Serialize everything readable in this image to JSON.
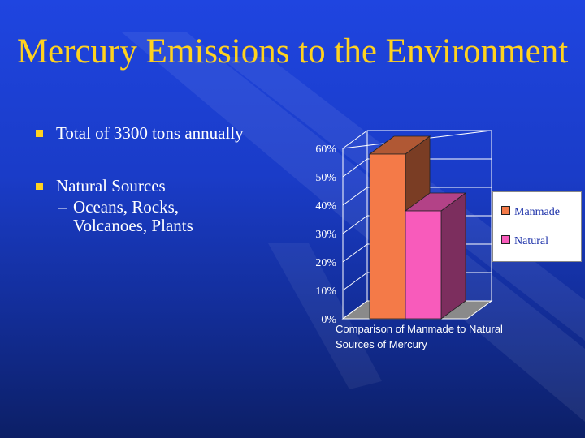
{
  "slide": {
    "title": "Mercury Emissions to the Environment",
    "bullets": [
      {
        "text": "Total of 3300 tons annually"
      },
      {
        "text": "Natural Sources",
        "sub": [
          "Oceans, Rocks,",
          "Volcanoes, Plants"
        ]
      }
    ],
    "colors": {
      "background": "#1a3cc8",
      "title": "#ffd21f",
      "bullet_marker": "#ffd21f"
    }
  },
  "chart_data": {
    "type": "bar",
    "title": "",
    "caption": [
      "Comparison  of Manmade to Natural",
      "Sources of Mercury"
    ],
    "categories": [
      ""
    ],
    "series": [
      {
        "name": "Manmade",
        "values": [
          58
        ],
        "color": "#f47a48"
      },
      {
        "name": "Natural",
        "values": [
          38
        ],
        "color": "#f85bbb"
      }
    ],
    "ylim": [
      0,
      60
    ],
    "yticks": [
      "0%",
      "10%",
      "20%",
      "30%",
      "40%",
      "50%",
      "60%"
    ],
    "xlabel": "",
    "ylabel": "",
    "grid": true,
    "legend": "right"
  }
}
